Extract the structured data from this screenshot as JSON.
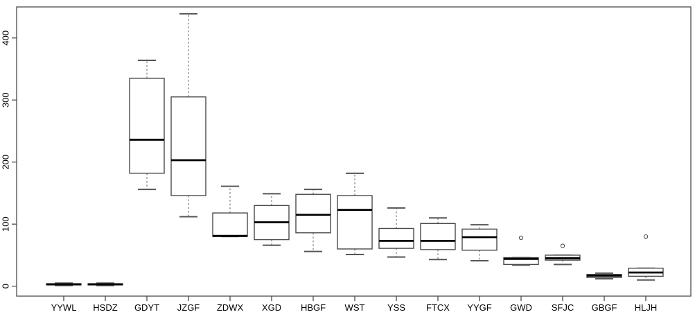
{
  "figure": {
    "background": "#ffffff",
    "title": "",
    "xlabel": "",
    "ylabel": ""
  },
  "chart_data": {
    "type": "boxplot",
    "title": "",
    "xlabel": "",
    "ylabel": "",
    "categories": [
      "YYWL",
      "HSDZ",
      "GDYT",
      "JZGF",
      "ZDWX",
      "XGD",
      "HBGF",
      "WST",
      "YSS",
      "FTCX",
      "YYGF",
      "GWD",
      "SFJC",
      "GBGF",
      "HLJH"
    ],
    "boxes": [
      {
        "label": "YYWL",
        "whisker_low": 1,
        "q1": 2,
        "median": 3,
        "q3": 4,
        "whisker_high": 5,
        "outliers": []
      },
      {
        "label": "HSDZ",
        "whisker_low": 1,
        "q1": 2,
        "median": 3,
        "q3": 4,
        "whisker_high": 5,
        "outliers": []
      },
      {
        "label": "GDYT",
        "whisker_low": 156,
        "q1": 182,
        "median": 236,
        "q3": 335,
        "whisker_high": 364,
        "outliers": []
      },
      {
        "label": "JZGF",
        "whisker_low": 112,
        "q1": 146,
        "median": 203,
        "q3": 305,
        "whisker_high": 439,
        "outliers": []
      },
      {
        "label": "ZDWX",
        "whisker_low": 80,
        "q1": 80,
        "median": 81,
        "q3": 118,
        "whisker_high": 161,
        "outliers": []
      },
      {
        "label": "XGD",
        "whisker_low": 66,
        "q1": 75,
        "median": 103,
        "q3": 130,
        "whisker_high": 149,
        "outliers": []
      },
      {
        "label": "HBGF",
        "whisker_low": 56,
        "q1": 86,
        "median": 115,
        "q3": 148,
        "whisker_high": 156,
        "outliers": []
      },
      {
        "label": "WST",
        "whisker_low": 51,
        "q1": 60,
        "median": 123,
        "q3": 146,
        "whisker_high": 182,
        "outliers": []
      },
      {
        "label": "YSS",
        "whisker_low": 47,
        "q1": 61,
        "median": 73,
        "q3": 93,
        "whisker_high": 126,
        "outliers": []
      },
      {
        "label": "FTCX",
        "whisker_low": 43,
        "q1": 59,
        "median": 73,
        "q3": 101,
        "whisker_high": 110,
        "outliers": []
      },
      {
        "label": "YYGF",
        "whisker_low": 41,
        "q1": 58,
        "median": 79,
        "q3": 92,
        "whisker_high": 99,
        "outliers": []
      },
      {
        "label": "GWD",
        "whisker_low": 34,
        "q1": 35,
        "median": 44,
        "q3": 46,
        "whisker_high": 46,
        "outliers": [
          78
        ]
      },
      {
        "label": "SFJC",
        "whisker_low": 35,
        "q1": 42,
        "median": 45,
        "q3": 50,
        "whisker_high": 50,
        "outliers": [
          65
        ]
      },
      {
        "label": "GBGF",
        "whisker_low": 12,
        "q1": 14,
        "median": 17,
        "q3": 19,
        "whisker_high": 21,
        "outliers": []
      },
      {
        "label": "HLJH",
        "whisker_low": 10,
        "q1": 16,
        "median": 22,
        "q3": 29,
        "whisker_high": 29,
        "outliers": [
          80
        ]
      }
    ],
    "y_axis": {
      "ticks": [
        0,
        100,
        200,
        300,
        400
      ],
      "lim": [
        -16,
        450
      ]
    },
    "grid": false,
    "legend": null,
    "colors": {
      "box_stroke": "#4a4a4a",
      "box_fill": "#ffffff",
      "median": "#000000",
      "whisker": "#808080",
      "cap": "#555555",
      "outlier": "#4a4a4a",
      "axis": "#4a4a4a",
      "text": "#000000",
      "background": "#ffffff"
    }
  }
}
